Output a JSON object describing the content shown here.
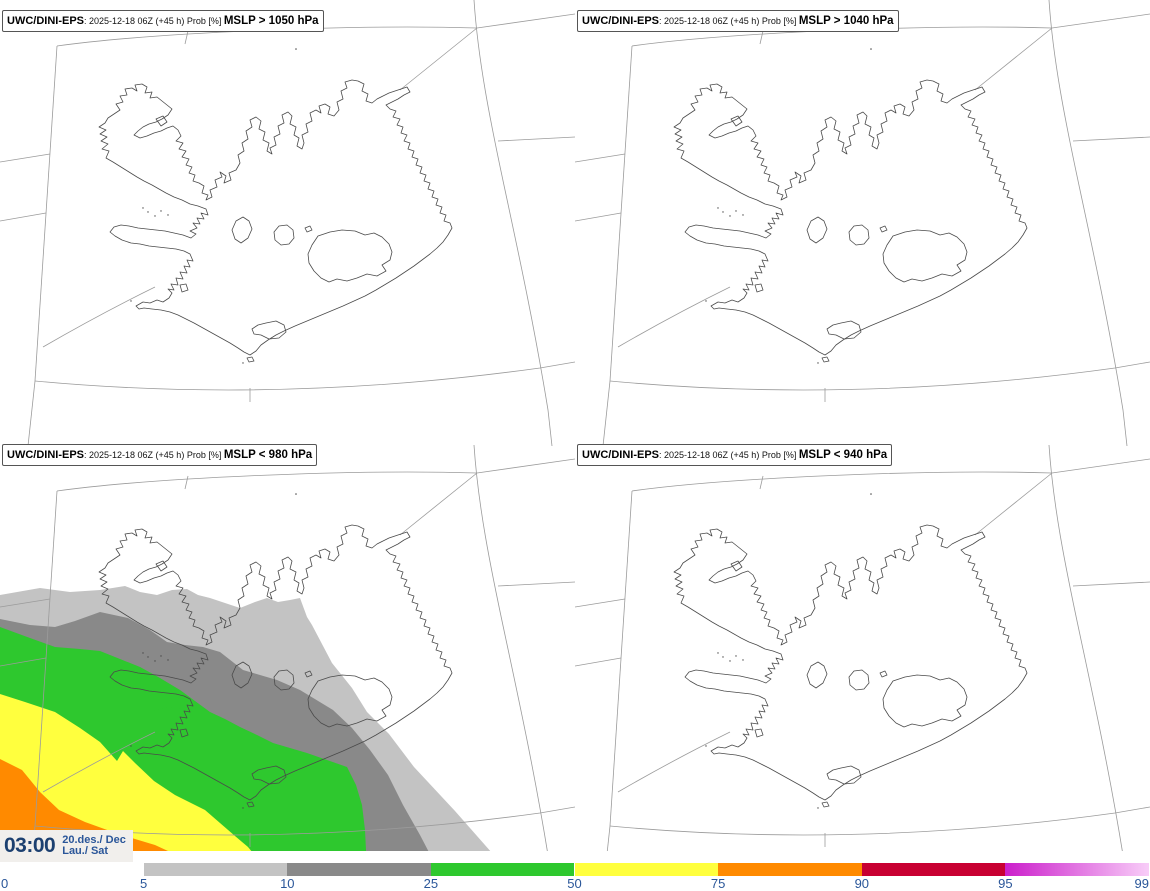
{
  "panels": [
    {
      "product": "UWC/DINI-EPS",
      "details": ": 2025-12-18 06Z (+45 h) Prob [%] ",
      "threshold": "MSLP > 1050 hPa"
    },
    {
      "product": "UWC/DINI-EPS",
      "details": ": 2025-12-18 06Z (+45 h) Prob [%] ",
      "threshold": "MSLP > 1040 hPa"
    },
    {
      "product": "UWC/DINI-EPS",
      "details": ": 2025-12-18 06Z (+45 h) Prob [%] ",
      "threshold": "MSLP < 980 hPa"
    },
    {
      "product": "UWC/DINI-EPS",
      "details": ": 2025-12-18 06Z (+45 h) Prob [%] ",
      "threshold": "MSLP < 940 hPa"
    }
  ],
  "timestamp": {
    "time": "03:00",
    "date": "20.des./ Dec",
    "day": "Lau./ Sat"
  },
  "colorbar": {
    "ticks": [
      "0",
      "5",
      "10",
      "25",
      "50",
      "75",
      "90",
      "95",
      "99"
    ],
    "segments": [
      {
        "from": "5",
        "to": "10",
        "color": "#c3c3c3"
      },
      {
        "from": "10",
        "to": "25",
        "color": "#898989"
      },
      {
        "from": "25",
        "to": "50",
        "color": "#2ec82e"
      },
      {
        "from": "50",
        "to": "75",
        "color": "#ffff3e"
      },
      {
        "from": "75",
        "to": "90",
        "color": "#ff8a00"
      },
      {
        "from": "90",
        "to": "95",
        "color": "#c80032"
      },
      {
        "from": "95",
        "to": "99",
        "color": "#cb1ecb",
        "color_end": "#f8cdf8",
        "gradient": true
      }
    ]
  },
  "map_bands": {
    "band_5_10": "#c3c3c3",
    "band_10_25": "#898989",
    "band_25_50": "#2ec82e",
    "band_50_75": "#ffff3e",
    "band_75_90": "#ff8a00"
  }
}
